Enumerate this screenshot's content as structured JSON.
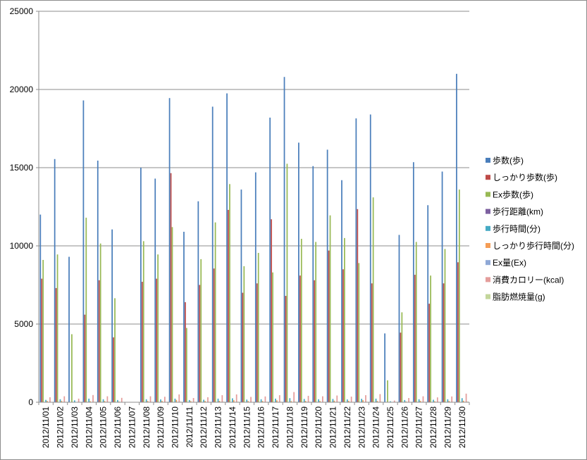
{
  "chart_data": {
    "type": "bar",
    "title": "",
    "xlabel": "",
    "ylabel": "",
    "ylim": [
      0,
      25000
    ],
    "yticks": [
      0,
      5000,
      10000,
      15000,
      20000,
      25000
    ],
    "grid": true,
    "legend_position": "right",
    "categories": [
      "2012/11/01",
      "2012/11/02",
      "2012/11/03",
      "2012/11/04",
      "2012/11/05",
      "2012/11/06",
      "2012/11/07",
      "2012/11/08",
      "2012/11/09",
      "2012/11/10",
      "2012/11/11",
      "2012/11/12",
      "2012/11/13",
      "2012/11/14",
      "2012/11/15",
      "2012/11/16",
      "2012/11/17",
      "2012/11/18",
      "2012/11/19",
      "2012/11/20",
      "2012/11/21",
      "2012/11/22",
      "2012/11/23",
      "2012/11/24",
      "2012/11/25",
      "2012/11/26",
      "2012/11/27",
      "2012/11/28",
      "2012/11/29",
      "2012/11/30"
    ],
    "series": [
      {
        "name": "歩数(歩)",
        "color": "#4a7ebb",
        "values": [
          12000,
          15550,
          9300,
          19300,
          15450,
          11050,
          0,
          15000,
          14300,
          19450,
          10900,
          12850,
          18900,
          19750,
          13600,
          14700,
          18200,
          20800,
          16600,
          15100,
          16150,
          14200,
          18150,
          18400,
          4400,
          10700,
          15350,
          12600,
          14750,
          21000
        ]
      },
      {
        "name": "しっかり歩数(歩)",
        "color": "#be4b48",
        "values": [
          7900,
          7300,
          0,
          5600,
          7800,
          4150,
          0,
          7700,
          7900,
          14650,
          6400,
          7500,
          8550,
          12300,
          7000,
          7600,
          11700,
          6800,
          8100,
          7800,
          9700,
          8500,
          12350,
          7600,
          0,
          4450,
          8150,
          6300,
          7600,
          8950
        ]
      },
      {
        "name": "Ex歩数(歩)",
        "color": "#98b954",
        "values": [
          9100,
          9450,
          4350,
          11800,
          10150,
          6650,
          0,
          10300,
          9450,
          11200,
          4750,
          9150,
          11500,
          13950,
          8700,
          9550,
          8300,
          15250,
          10450,
          10250,
          11950,
          10500,
          8900,
          13100,
          1400,
          5750,
          10250,
          8100,
          9800,
          13600
        ]
      },
      {
        "name": "歩行距離(km)",
        "color": "#7d60a0",
        "values": [
          8,
          10,
          6,
          13,
          10,
          7,
          0,
          10,
          9,
          12,
          7,
          8,
          12,
          13,
          9,
          10,
          12,
          14,
          11,
          10,
          11,
          9,
          12,
          12,
          3,
          7,
          10,
          8,
          10,
          14
        ]
      },
      {
        "name": "歩行時間(分)",
        "color": "#46aac4",
        "values": [
          150,
          190,
          120,
          230,
          190,
          140,
          0,
          190,
          180,
          230,
          140,
          160,
          230,
          250,
          170,
          190,
          230,
          260,
          210,
          190,
          210,
          180,
          220,
          230,
          60,
          140,
          190,
          160,
          190,
          260
        ]
      },
      {
        "name": "しっかり歩行時間(分)",
        "color": "#f59d56",
        "values": [
          80,
          80,
          0,
          60,
          80,
          45,
          0,
          80,
          80,
          150,
          70,
          80,
          90,
          130,
          75,
          80,
          120,
          70,
          85,
          80,
          100,
          90,
          130,
          80,
          0,
          50,
          85,
          65,
          80,
          95
        ]
      },
      {
        "name": "Ex量(Ex)",
        "color": "#8fa8d6",
        "values": [
          2,
          2,
          1,
          3,
          2,
          1,
          0,
          2,
          2,
          3,
          1,
          2,
          3,
          3,
          2,
          2,
          3,
          3,
          2,
          2,
          3,
          2,
          3,
          3,
          0,
          1,
          2,
          2,
          2,
          3
        ]
      },
      {
        "name": "消費カロリー(kcal)",
        "color": "#e49d9b",
        "values": [
          320,
          380,
          230,
          460,
          380,
          280,
          0,
          380,
          350,
          500,
          270,
          320,
          450,
          500,
          340,
          370,
          450,
          650,
          410,
          380,
          430,
          360,
          450,
          520,
          110,
          270,
          380,
          310,
          370,
          550
        ]
      },
      {
        "name": "脂肪燃焼量(g)",
        "color": "#c3d69b",
        "values": [
          20,
          25,
          15,
          30,
          25,
          18,
          0,
          25,
          23,
          35,
          18,
          21,
          30,
          33,
          22,
          24,
          30,
          40,
          27,
          25,
          28,
          24,
          30,
          32,
          7,
          18,
          25,
          20,
          24,
          36
        ]
      }
    ]
  }
}
